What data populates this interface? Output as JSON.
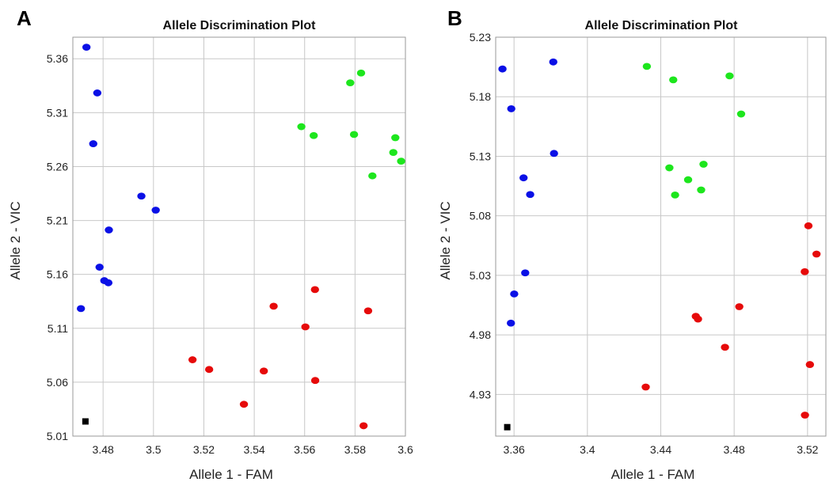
{
  "panels": [
    {
      "letter": "A"
    },
    {
      "letter": "B"
    }
  ],
  "chart_data": [
    {
      "type": "scatter",
      "title": "Allele Discrimination Plot",
      "xlabel": "Allele 1 - FAM",
      "ylabel": "Allele 2 - VIC",
      "xlim": [
        3.468,
        3.6
      ],
      "ylim": [
        5.01,
        5.38
      ],
      "xticks": [
        3.48,
        3.5,
        3.52,
        3.54,
        3.56,
        3.58,
        3.6
      ],
      "xtick_labels": [
        "3.48",
        "3.5",
        "3.52",
        "3.54",
        "3.56",
        "3.58",
        "3.6"
      ],
      "yticks": [
        5.01,
        5.06,
        5.11,
        5.16,
        5.21,
        5.26,
        5.31,
        5.36
      ],
      "ytick_labels": [
        "5.01",
        "5.06",
        "5.11",
        "5.16",
        "5.21",
        "5.26",
        "5.31",
        "5.36"
      ],
      "grid": true,
      "series": [
        {
          "color": "#0a10e6",
          "marker": "circle",
          "points": [
            [
              3.4734,
              5.3707
            ],
            [
              3.4777,
              5.3283
            ],
            [
              3.4761,
              5.2812
            ],
            [
              3.4952,
              5.2326
            ],
            [
              3.5009,
              5.2196
            ],
            [
              3.4823,
              5.2012
            ],
            [
              3.4786,
              5.1667
            ],
            [
              3.4805,
              5.1542
            ],
            [
              3.4821,
              5.1522
            ],
            [
              3.4712,
              5.1283
            ]
          ]
        },
        {
          "color": "#1de61d",
          "marker": "circle",
          "points": [
            [
              3.5824,
              5.3468
            ],
            [
              3.5781,
              5.3377
            ],
            [
              3.5587,
              5.297
            ],
            [
              3.5636,
              5.2888
            ],
            [
              3.5796,
              5.2898
            ],
            [
              3.596,
              5.2868
            ],
            [
              3.5952,
              5.2731
            ],
            [
              3.5983,
              5.265
            ],
            [
              3.5869,
              5.2514
            ]
          ]
        },
        {
          "color": "#e60a0a",
          "marker": "circle",
          "points": [
            [
              3.5641,
              5.1459
            ],
            [
              3.5477,
              5.1305
            ],
            [
              3.5852,
              5.1262
            ],
            [
              3.5603,
              5.1113
            ],
            [
              3.5155,
              5.0808
            ],
            [
              3.5221,
              5.0718
            ],
            [
              3.5438,
              5.0704
            ],
            [
              3.5642,
              5.0616
            ],
            [
              3.5359,
              5.0395
            ],
            [
              3.5834,
              5.0196
            ]
          ]
        },
        {
          "color": "#000000",
          "marker": "square",
          "points": [
            [
              3.473,
              5.0236
            ]
          ]
        }
      ]
    },
    {
      "type": "scatter",
      "title": "Allele Discrimination Plot",
      "xlabel": "Allele 1 - FAM",
      "ylabel": "Allele 2 - VIC",
      "xlim": [
        3.35,
        3.53
      ],
      "ylim": [
        4.895,
        5.23
      ],
      "xticks": [
        3.36,
        3.4,
        3.44,
        3.48,
        3.52
      ],
      "xtick_labels": [
        "3.36",
        "3.4",
        "3.44",
        "3.48",
        "3.52"
      ],
      "yticks": [
        4.93,
        4.98,
        5.03,
        5.08,
        5.13,
        5.18,
        5.23
      ],
      "ytick_labels": [
        "4.93",
        "4.98",
        "5.03",
        "5.08",
        "5.13",
        "5.18",
        "5.23"
      ],
      "grid": true,
      "series": [
        {
          "color": "#0a10e6",
          "marker": "circle",
          "points": [
            [
              3.3814,
              5.2092
            ],
            [
              3.3537,
              5.2033
            ],
            [
              3.3585,
              5.1699
            ],
            [
              3.3818,
              5.1324
            ],
            [
              3.3652,
              5.1119
            ],
            [
              3.3688,
              5.0979
            ],
            [
              3.3661,
              5.0321
            ],
            [
              3.3601,
              5.0144
            ],
            [
              3.3583,
              4.9899
            ]
          ]
        },
        {
          "color": "#1de61d",
          "marker": "circle",
          "points": [
            [
              3.4324,
              5.2055
            ],
            [
              3.4468,
              5.1942
            ],
            [
              3.4775,
              5.1975
            ],
            [
              3.4838,
              5.1655
            ],
            [
              3.4633,
              5.1233
            ],
            [
              3.4447,
              5.1203
            ],
            [
              3.4549,
              5.1103
            ],
            [
              3.462,
              5.1017
            ],
            [
              3.4478,
              5.0975
            ]
          ]
        },
        {
          "color": "#e60a0a",
          "marker": "circle",
          "points": [
            [
              3.5205,
              5.0716
            ],
            [
              3.5249,
              5.0479
            ],
            [
              3.5185,
              5.0331
            ],
            [
              3.4828,
              5.0037
            ],
            [
              3.4591,
              4.9956
            ],
            [
              3.4603,
              4.9933
            ],
            [
              3.475,
              4.9696
            ],
            [
              3.5213,
              4.9551
            ],
            [
              3.4318,
              4.9362
            ],
            [
              3.5186,
              4.9126
            ]
          ]
        },
        {
          "color": "#000000",
          "marker": "square",
          "points": [
            [
              3.3563,
              4.9025
            ]
          ]
        }
      ]
    }
  ]
}
